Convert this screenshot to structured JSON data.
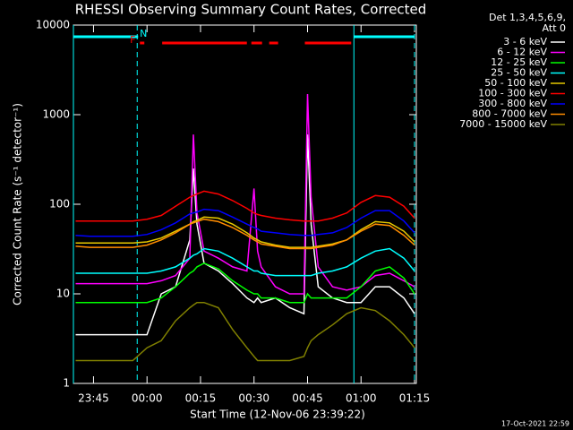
{
  "chart_data": {
    "type": "line",
    "title": "RHESSI Observing Summary Count Rates, Corrected",
    "x_label": "Start Time (12-Nov-06 23:39:22)",
    "y_label": "Corrected Count Rate (s⁻¹ detector⁻¹)",
    "log_y": true,
    "legend_title": [
      "Det 1,3,4,5,6,9,",
      "Att 0"
    ],
    "timestamp": "17-Oct-2021 22:59",
    "xlim": [
      "23:39:22",
      "01:15:30"
    ],
    "xticks": [
      "23:45",
      "00:00",
      "00:15",
      "00:30",
      "00:45",
      "01:00",
      "01:15"
    ],
    "ylim": [
      1,
      10000
    ],
    "yticks": [
      1,
      10,
      100,
      1000,
      10000
    ],
    "x": [
      "23:40",
      "23:44",
      "23:48",
      "23:52",
      "23:56",
      "00:00",
      "00:04",
      "00:08",
      "00:12",
      "00:13",
      "00:14",
      "00:16",
      "00:20",
      "00:24",
      "00:28",
      "00:30",
      "00:31",
      "00:32",
      "00:36",
      "00:40",
      "00:44",
      "00:45",
      "00:46",
      "00:48",
      "00:52",
      "00:56",
      "01:00",
      "01:04",
      "01:08",
      "01:12",
      "01:15"
    ],
    "series": [
      {
        "name": "3 - 6 keV",
        "color": "#ffffff",
        "values": [
          3.5,
          3.5,
          3.5,
          3.5,
          3.5,
          3.5,
          10,
          12,
          40,
          250,
          60,
          22,
          18,
          13,
          9,
          8,
          9,
          8,
          9,
          7,
          6,
          600,
          60,
          12,
          9,
          8,
          8,
          12,
          12,
          9,
          6
        ]
      },
      {
        "name": "6 - 12 keV",
        "color": "#ff00ff",
        "values": [
          13,
          13,
          13,
          13,
          13,
          13,
          14,
          16,
          25,
          600,
          80,
          30,
          25,
          20,
          18,
          150,
          30,
          20,
          12,
          10,
          10,
          1700,
          120,
          20,
          12,
          11,
          12,
          16,
          17,
          14,
          12
        ]
      },
      {
        "name": "12 - 25 keV",
        "color": "#00ff00",
        "values": [
          8,
          8,
          8,
          8,
          8,
          8,
          9,
          12,
          17,
          18,
          20,
          22,
          19,
          14,
          11,
          10,
          10,
          9,
          9,
          8,
          8,
          10,
          9,
          9,
          9,
          9,
          12,
          18,
          20,
          15,
          10
        ]
      },
      {
        "name": "25 - 50 keV",
        "color": "#00ffff",
        "values": [
          17,
          17,
          17,
          17,
          17,
          17,
          18,
          20,
          25,
          27,
          28,
          32,
          30,
          25,
          20,
          18,
          18,
          17,
          16,
          16,
          16,
          16,
          16,
          17,
          18,
          20,
          25,
          30,
          32,
          25,
          18
        ]
      },
      {
        "name": "50 - 100 keV",
        "color": "#e6c800",
        "values": [
          37,
          37,
          37,
          37,
          37,
          38,
          42,
          50,
          60,
          64,
          66,
          72,
          70,
          60,
          48,
          42,
          40,
          38,
          35,
          33,
          33,
          33,
          33,
          34,
          36,
          40,
          52,
          64,
          62,
          50,
          38
        ]
      },
      {
        "name": "100 - 300 keV",
        "color": "#ff0000",
        "values": [
          65,
          65,
          65,
          65,
          65,
          68,
          75,
          95,
          120,
          125,
          130,
          140,
          130,
          110,
          90,
          80,
          77,
          75,
          70,
          67,
          65,
          65,
          65,
          65,
          70,
          80,
          105,
          125,
          120,
          95,
          70
        ]
      },
      {
        "name": "300 - 800 keV",
        "color": "#0000ff",
        "values": [
          45,
          44,
          44,
          44,
          44,
          46,
          52,
          62,
          78,
          80,
          82,
          88,
          85,
          72,
          60,
          55,
          53,
          50,
          48,
          46,
          45,
          45,
          45,
          46,
          48,
          55,
          70,
          85,
          85,
          65,
          48
        ]
      },
      {
        "name": "800 - 7000 keV",
        "color": "#ff8c00",
        "values": [
          34,
          33,
          33,
          33,
          33,
          35,
          40,
          48,
          60,
          62,
          64,
          68,
          64,
          55,
          45,
          40,
          38,
          36,
          34,
          32,
          32,
          32,
          32,
          33,
          35,
          40,
          50,
          60,
          58,
          45,
          35
        ]
      },
      {
        "name": "7000 - 15000 keV",
        "color": "#808000",
        "values": [
          1.8,
          1.8,
          1.8,
          1.8,
          1.8,
          2.5,
          3,
          5,
          7,
          7.5,
          8,
          8,
          7,
          4,
          2.5,
          2,
          1.8,
          1.8,
          1.8,
          1.8,
          2,
          2.5,
          3,
          3.5,
          4.5,
          6,
          7,
          6.5,
          5,
          3.5,
          2.5
        ]
      }
    ],
    "flags": [
      {
        "label": "N",
        "color": "#00ffff",
        "segments": [
          [
            "23:39:22",
            "23:57:30"
          ],
          [
            "00:58:00",
            "01:15:00"
          ]
        ]
      },
      {
        "label": "F",
        "color": "#ff0000",
        "segments": [
          [
            "23:58:00",
            "23:59:15"
          ],
          [
            "00:04:15",
            "00:28:00"
          ],
          [
            "00:29:15",
            "00:32:15"
          ],
          [
            "00:34:15",
            "00:36:45"
          ],
          [
            "00:44:15",
            "00:57:15"
          ]
        ]
      }
    ],
    "markers": [
      {
        "time": "23:39:22",
        "style": "solid"
      },
      {
        "time": "23:57:15",
        "style": "dashed"
      },
      {
        "time": "00:58:00",
        "style": "solid"
      },
      {
        "time": "01:15:00",
        "style": "dashed"
      }
    ]
  }
}
